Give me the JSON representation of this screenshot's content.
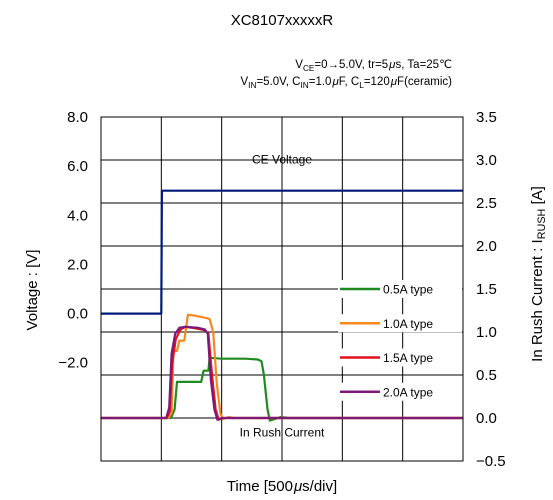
{
  "chart_data": {
    "type": "line",
    "title": "XC8107xxxxxR",
    "condition_line1": {
      "parts": [
        {
          "t": "V",
          "s": "n"
        },
        {
          "t": "CE",
          "s": "sub"
        },
        {
          "t": "=0→5.0V, tr=5",
          "s": "n"
        },
        {
          "t": "μ",
          "s": "mu"
        },
        {
          "t": "s, Ta=25℃",
          "s": "n"
        }
      ]
    },
    "condition_line2": {
      "parts": [
        {
          "t": "V",
          "s": "n"
        },
        {
          "t": "IN",
          "s": "sub"
        },
        {
          "t": "=5.0V, C",
          "s": "n"
        },
        {
          "t": "IN",
          "s": "sub"
        },
        {
          "t": "=1.0",
          "s": "n"
        },
        {
          "t": "μ",
          "s": "mu"
        },
        {
          "t": "F, C",
          "s": "n"
        },
        {
          "t": "L",
          "s": "sub"
        },
        {
          "t": "=120",
          "s": "n"
        },
        {
          "t": "μ",
          "s": "mu"
        },
        {
          "t": "F(ceramic)",
          "s": "n"
        }
      ]
    },
    "xlabel": {
      "parts": [
        {
          "t": "Time [500",
          "s": "n"
        },
        {
          "t": "μ",
          "s": "mu"
        },
        {
          "t": "s/div]",
          "s": "n"
        }
      ]
    },
    "ylabel_left": "Voltage : [V]",
    "ylabel_right": {
      "parts": [
        {
          "t": "In Rush Current : I",
          "s": "n"
        },
        {
          "t": "RUSH",
          "s": "sub"
        },
        {
          "t": " [A]",
          "s": "n"
        }
      ]
    },
    "x_divisions": 6,
    "x_unit_us": 500,
    "xlim_us": [
      0,
      3000
    ],
    "left_axis": {
      "ylim": [
        -6.0,
        8.0
      ],
      "ticks": [
        8.0,
        6.0,
        4.0,
        2.0,
        0.0,
        -2.0
      ],
      "tick_labels": [
        "8.0",
        "6.0",
        "4.0",
        "2.0",
        "0.0",
        "−2.0"
      ]
    },
    "right_axis": {
      "ylim": [
        -0.5,
        3.5
      ],
      "ticks": [
        3.5,
        3.0,
        2.5,
        2.0,
        1.5,
        1.0,
        0.5,
        0.0,
        -0.5
      ],
      "tick_labels": [
        "3.5",
        "3.0",
        "2.5",
        "2.0",
        "1.5",
        "1.0",
        "0.5",
        "0.0",
        "−0.5"
      ]
    },
    "grid": true,
    "annotations": [
      {
        "text": "CE Voltage",
        "x_us": 1500,
        "y_v": 6.1
      },
      {
        "text": "In Rush Current",
        "x_us": 1500,
        "y_v": -5.0
      }
    ],
    "ce_voltage": {
      "color": "#001a7a",
      "axis": "left",
      "points": [
        [
          0,
          0.0
        ],
        [
          500,
          0.0
        ],
        [
          505,
          5.0
        ],
        [
          3000,
          5.0
        ]
      ]
    },
    "series": [
      {
        "name": "0.5A type",
        "color": "#1f8a1f",
        "axis": "right",
        "points": [
          [
            0,
            0.0
          ],
          [
            580,
            0.0
          ],
          [
            610,
            0.1
          ],
          [
            630,
            0.42
          ],
          [
            830,
            0.42
          ],
          [
            850,
            0.55
          ],
          [
            890,
            0.55
          ],
          [
            900,
            0.7
          ],
          [
            1000,
            0.69
          ],
          [
            1200,
            0.69
          ],
          [
            1300,
            0.68
          ],
          [
            1330,
            0.66
          ],
          [
            1350,
            0.5
          ],
          [
            1380,
            0.1
          ],
          [
            1400,
            -0.03
          ],
          [
            1440,
            -0.01
          ],
          [
            1490,
            0.01
          ],
          [
            1560,
            0.0
          ],
          [
            3000,
            0.0
          ]
        ]
      },
      {
        "name": "1.0A type",
        "color": "#f7881f",
        "axis": "right",
        "points": [
          [
            0,
            0.0
          ],
          [
            560,
            0.0
          ],
          [
            585,
            0.06
          ],
          [
            600,
            0.78
          ],
          [
            630,
            0.78
          ],
          [
            650,
            0.9
          ],
          [
            690,
            0.9
          ],
          [
            720,
            1.2
          ],
          [
            780,
            1.19
          ],
          [
            880,
            1.16
          ],
          [
            900,
            1.15
          ],
          [
            930,
            1.0
          ],
          [
            960,
            0.4
          ],
          [
            990,
            0.05
          ],
          [
            1010,
            -0.01
          ],
          [
            1060,
            0.01
          ],
          [
            1100,
            0.0
          ],
          [
            3000,
            0.0
          ]
        ]
      },
      {
        "name": "1.5A type",
        "color": "#e0101c",
        "axis": "right",
        "points": [
          [
            0,
            0.0
          ],
          [
            545,
            0.0
          ],
          [
            570,
            0.08
          ],
          [
            590,
            0.63
          ],
          [
            620,
            0.92
          ],
          [
            660,
            1.03
          ],
          [
            700,
            1.06
          ],
          [
            800,
            1.04
          ],
          [
            860,
            1.02
          ],
          [
            890,
            0.98
          ],
          [
            920,
            0.5
          ],
          [
            950,
            0.1
          ],
          [
            975,
            -0.02
          ],
          [
            1010,
            0.0
          ],
          [
            3000,
            0.0
          ]
        ]
      },
      {
        "name": "2.0A type",
        "color": "#7b1a7a",
        "axis": "right",
        "points": [
          [
            0,
            0.0
          ],
          [
            540,
            0.0
          ],
          [
            565,
            0.12
          ],
          [
            585,
            0.75
          ],
          [
            615,
            0.98
          ],
          [
            650,
            1.05
          ],
          [
            700,
            1.06
          ],
          [
            800,
            1.05
          ],
          [
            860,
            1.03
          ],
          [
            885,
            0.98
          ],
          [
            910,
            0.45
          ],
          [
            940,
            0.1
          ],
          [
            965,
            -0.02
          ],
          [
            1000,
            0.0
          ],
          [
            3000,
            0.0
          ]
        ]
      }
    ],
    "legend_position": "right-middle"
  }
}
